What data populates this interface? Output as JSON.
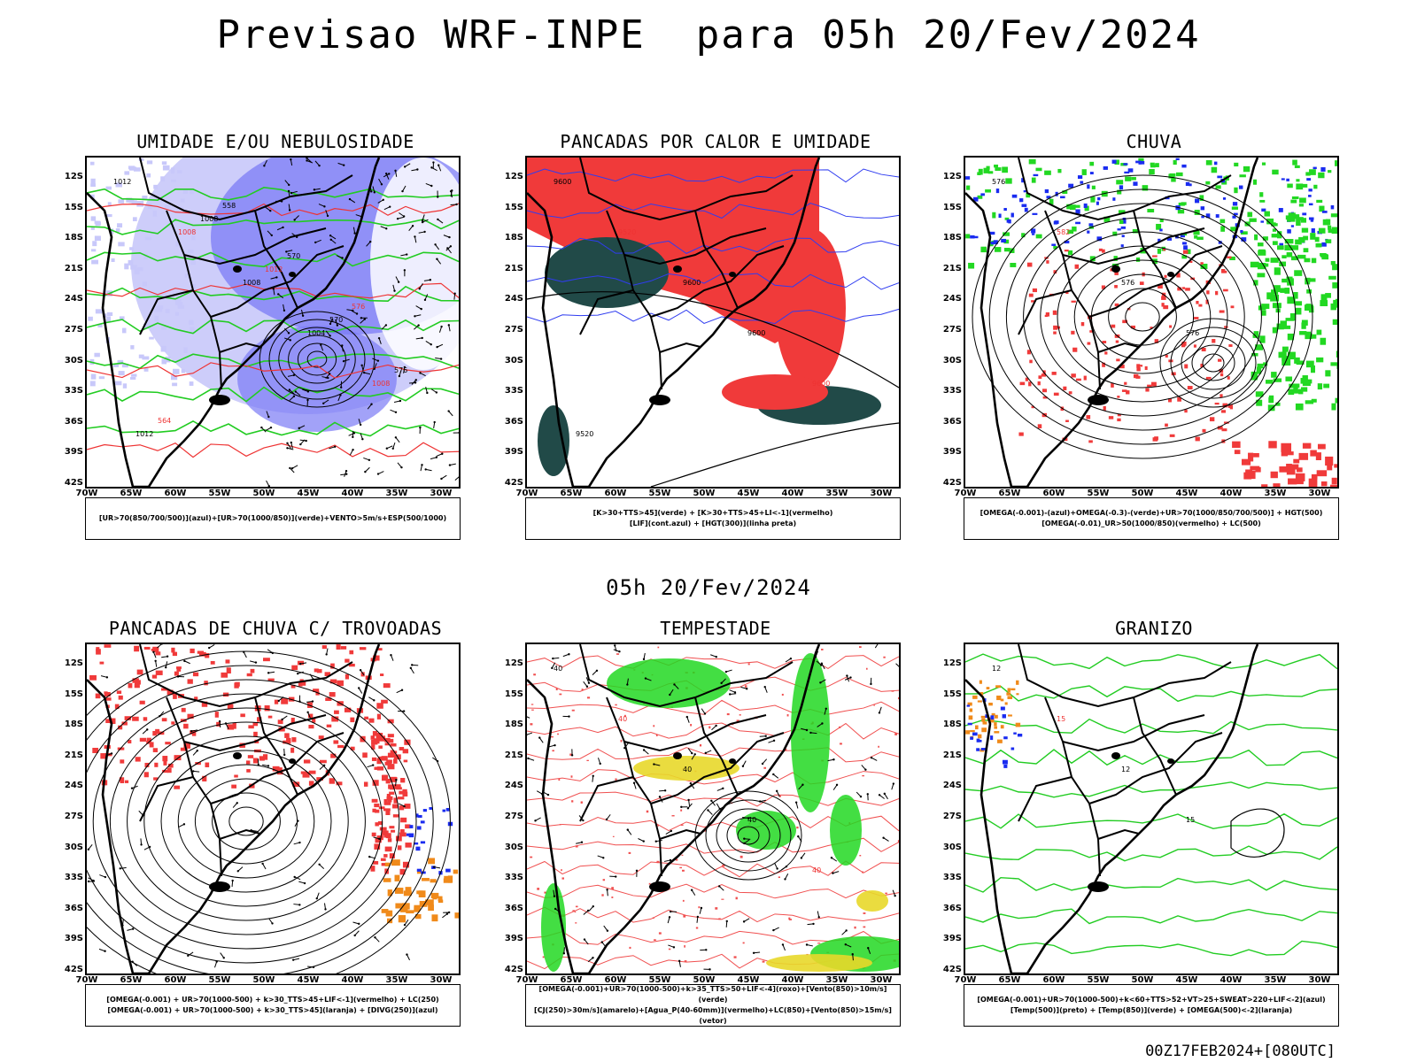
{
  "header": {
    "title": "Previsao WRF-INPE  para 05h 20/Fev/2024",
    "mid_date": "05h 20/Fev/2024",
    "footer_stamp": "00Z17FEB2024+[080UTC]"
  },
  "axes": {
    "lat_labels": [
      "12S",
      "15S",
      "18S",
      "21S",
      "24S",
      "27S",
      "30S",
      "33S",
      "36S",
      "39S",
      "42S"
    ],
    "lon_labels": [
      "70W",
      "65W",
      "60W",
      "55W",
      "50W",
      "45W",
      "40W",
      "35W",
      "30W"
    ]
  },
  "colors": {
    "frame": "#000000",
    "humidity_blue": "#7b7bf5",
    "humidity_light": "#c8c8fa",
    "green_contour": "#22cc22",
    "red_contour": "#ee3333",
    "red_fill": "#f03a3a",
    "dark_teal": "#214a48",
    "blue_rain": "#1a2cf0",
    "green_rain": "#22d822",
    "orange": "#f08a1a",
    "yellow": "#e8d82a"
  },
  "panels": [
    {
      "id": "umidade",
      "title": "UMIDADE E/OU NEBULOSIDADE",
      "legend": [
        "[UR>70(850/700/500)](azul)+[UR>70(1000/850)](verde)+VENTO>5m/s+ESP(500/1000)"
      ],
      "contour_labels": [
        "1012",
        "1008",
        "1008",
        "1004",
        "1008",
        "1012",
        "1008",
        "1012",
        "570",
        "576",
        "564",
        "558",
        "570",
        "576"
      ]
    },
    {
      "id": "pancadas-calor",
      "title": "PANCADAS POR CALOR E UMIDADE",
      "legend": [
        "[K>30+TTS>45](verde) + [K>30+TTS>45+LI<-1](vermelho)",
        "[LIF](cont.azul) + [HGT(300)](linha preta)"
      ],
      "contour_labels": [
        "9600",
        "9520",
        "9600",
        "9600",
        "9600",
        "9520"
      ]
    },
    {
      "id": "chuva",
      "title": "CHUVA",
      "legend": [
        "[OMEGA(-0.001)-(azul)+OMEGA(-0.3)-(verde)+UR>70(1000/850/700/500)] + HGT(500)",
        "[OMEGA(-0.01)_UR>50(1000/850)(vermelho) + LC(500)"
      ],
      "contour_labels": [
        "576",
        "582",
        "576",
        "576"
      ]
    },
    {
      "id": "pancadas-trovoadas",
      "title": "PANCADAS DE CHUVA C/ TROVOADAS",
      "legend": [
        "[OMEGA(-0.001) + UR>70(1000-500) + k>30_TTS>45+LIF<-1](vermelho) + LC(250)",
        "[OMEGA(-0.001) + UR>70(1000-500) + k>30_TTS>45](laranja) + [DIVG(250)](azul)"
      ],
      "contour_labels": []
    },
    {
      "id": "tempestade",
      "title": "TEMPESTADE",
      "legend": [
        "[OMEGA(-0.001)+UR>70(1000-500)+k>35_TTS>50+LIF<-4](roxo)+[Vento(850)>10m/s](verde)",
        "[CJ(250)>30m/s](amarelo)+[Agua_P(40-60mm)](vermelho)+LC(850)+[Vento(850)>15m/s](vetor)"
      ],
      "contour_labels": [
        "40",
        "40",
        "40",
        "40",
        "40"
      ]
    },
    {
      "id": "granizo",
      "title": "GRANIZO",
      "legend": [
        "[OMEGA(-0.001)+UR>70(1000-500)+k<60+TTS>52+VT>25+SWEAT>220+LIF<-2](azul)",
        "[Temp(500)](preto) + [Temp(850)](verde) + [OMEGA(500)<-2](laranja)"
      ],
      "contour_labels": [
        "12",
        "15",
        "12",
        "15"
      ]
    }
  ]
}
